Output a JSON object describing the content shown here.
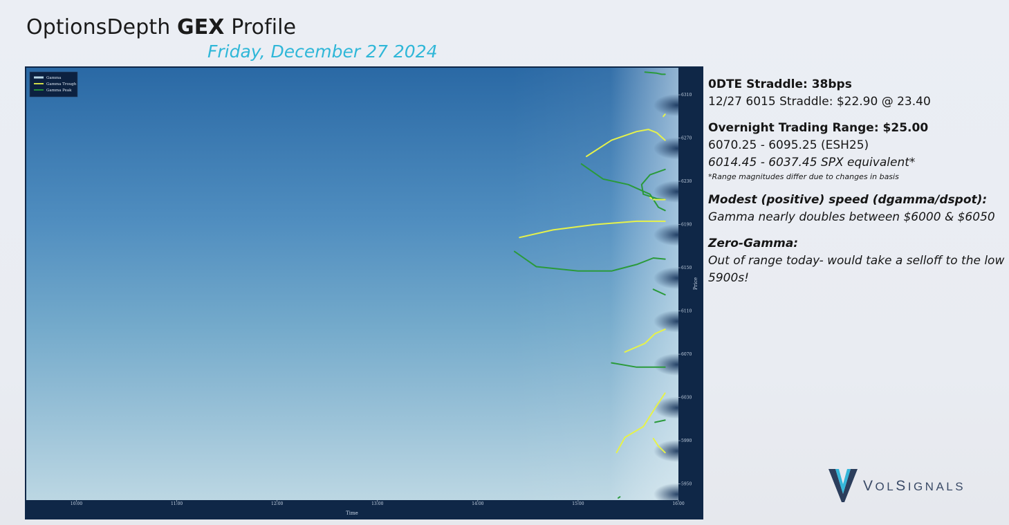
{
  "header": {
    "title_prefix": "OptionsDepth",
    "title_bold": "GEX",
    "title_suffix": "Profile",
    "date": "Friday, December 27 2024"
  },
  "notes": {
    "straddle_head": "0DTE Straddle: 38bps",
    "straddle_detail": "12/27 6015 Straddle: $22.90 @ 23.40",
    "overnight_head": "Overnight Trading Range: $25.00",
    "overnight_futures": "6070.25 - 6095.25 (ESH25)",
    "overnight_spx": "6014.45 - 6037.45 SPX equivalent*",
    "overnight_footnote": "*Range magnitudes differ due to changes in basis",
    "speed_head": "Modest (positive) speed (dgamma/dspot):",
    "speed_detail": "Gamma nearly doubles between $6000 & $6050",
    "zero_head": "Zero-Gamma:",
    "zero_detail": "Out of range today- would take a selloff to the low 5900s!"
  },
  "logo": {
    "v": "V",
    "word_a": "OL",
    "s": "S",
    "word_b": "IGNALS"
  },
  "chart_data": {
    "type": "heatmap",
    "title": "",
    "xlabel": "Time",
    "ylabel": "Price",
    "x_ticks": [
      "10:00",
      "11:00",
      "12:00",
      "13:00",
      "14:00",
      "15:00",
      "16:00"
    ],
    "x_range": [
      "09:30",
      "16:00"
    ],
    "y_ticks": [
      "5950",
      "5990",
      "6030",
      "6070",
      "6110",
      "6150",
      "6190",
      "6230",
      "6270",
      "6310"
    ],
    "y_range": [
      5935,
      6335
    ],
    "legend": [
      "Gamma",
      "Gamma Trough",
      "Gamma Peak"
    ],
    "legend_position": "top-left",
    "grid": false,
    "colors": {
      "background": "#0f2747",
      "heat_top": "#2a6aa6",
      "heat_mid": "#6aa6cc",
      "heat_bottom": "#b9d6e4",
      "trough": "#e6f24a",
      "peak": "#2a9a3a"
    },
    "series": [
      {
        "name": "Gamma Peak",
        "points": [
          [
            "15:40",
            6331
          ],
          [
            "15:47",
            6330
          ],
          [
            "15:50",
            6329
          ],
          [
            "15:52",
            6329
          ]
        ]
      },
      {
        "name": "Gamma Trough",
        "points": [
          [
            "15:51",
            6290
          ],
          [
            "15:52",
            6292
          ]
        ]
      },
      {
        "name": "Gamma Trough",
        "points": [
          [
            "15:05",
            6253
          ],
          [
            "15:20",
            6268
          ],
          [
            "15:35",
            6276
          ],
          [
            "15:42",
            6278
          ],
          [
            "15:47",
            6275
          ],
          [
            "15:52",
            6268
          ]
        ]
      },
      {
        "name": "Gamma Peak",
        "points": [
          [
            "15:02",
            6246
          ],
          [
            "15:15",
            6232
          ],
          [
            "15:30",
            6227
          ],
          [
            "15:43",
            6218
          ],
          [
            "15:48",
            6206
          ],
          [
            "15:52",
            6203
          ]
        ]
      },
      {
        "name": "Gamma Peak",
        "points": [
          [
            "15:52",
            6241
          ],
          [
            "15:43",
            6236
          ],
          [
            "15:38",
            6227
          ],
          [
            "15:39",
            6218
          ],
          [
            "15:47",
            6214
          ],
          [
            "15:52",
            6213
          ]
        ]
      },
      {
        "name": "Gamma Trough",
        "points": [
          [
            "15:43",
            6215
          ],
          [
            "15:44",
            6214
          ]
        ]
      },
      {
        "name": "Gamma Trough",
        "points": [
          [
            "15:45",
            6213
          ],
          [
            "15:52",
            6213
          ]
        ]
      },
      {
        "name": "Gamma Trough",
        "points": [
          [
            "14:25",
            6178
          ],
          [
            "14:45",
            6185
          ],
          [
            "15:10",
            6190
          ],
          [
            "15:35",
            6193
          ],
          [
            "15:52",
            6193
          ]
        ]
      },
      {
        "name": "Gamma Peak",
        "points": [
          [
            "14:22",
            6165
          ],
          [
            "14:35",
            6151
          ],
          [
            "15:00",
            6147
          ],
          [
            "15:20",
            6147
          ],
          [
            "15:35",
            6153
          ],
          [
            "15:45",
            6159
          ],
          [
            "15:52",
            6158
          ]
        ]
      },
      {
        "name": "Gamma Peak",
        "points": [
          [
            "15:45",
            6130
          ],
          [
            "15:52",
            6125
          ]
        ]
      },
      {
        "name": "Gamma Trough",
        "points": [
          [
            "15:28",
            6072
          ],
          [
            "15:40",
            6080
          ],
          [
            "15:46",
            6089
          ],
          [
            "15:52",
            6093
          ]
        ]
      },
      {
        "name": "Gamma Peak",
        "points": [
          [
            "15:20",
            6062
          ],
          [
            "15:35",
            6058
          ],
          [
            "15:52",
            6058
          ]
        ]
      },
      {
        "name": "Gamma Trough",
        "points": [
          [
            "15:52",
            6034
          ],
          [
            "15:46",
            6020
          ],
          [
            "15:39",
            6003
          ],
          [
            "15:28",
            5993
          ],
          [
            "15:23",
            5979
          ]
        ]
      },
      {
        "name": "Gamma Peak",
        "points": [
          [
            "15:46",
            6007
          ],
          [
            "15:52",
            6009
          ]
        ]
      },
      {
        "name": "Gamma Peak",
        "points": [
          [
            "15:24",
            5937
          ],
          [
            "15:25",
            5938
          ]
        ]
      },
      {
        "name": "Gamma Trough",
        "points": [
          [
            "15:45",
            5992
          ],
          [
            "15:48",
            5985
          ],
          [
            "15:52",
            5979
          ]
        ]
      }
    ]
  }
}
